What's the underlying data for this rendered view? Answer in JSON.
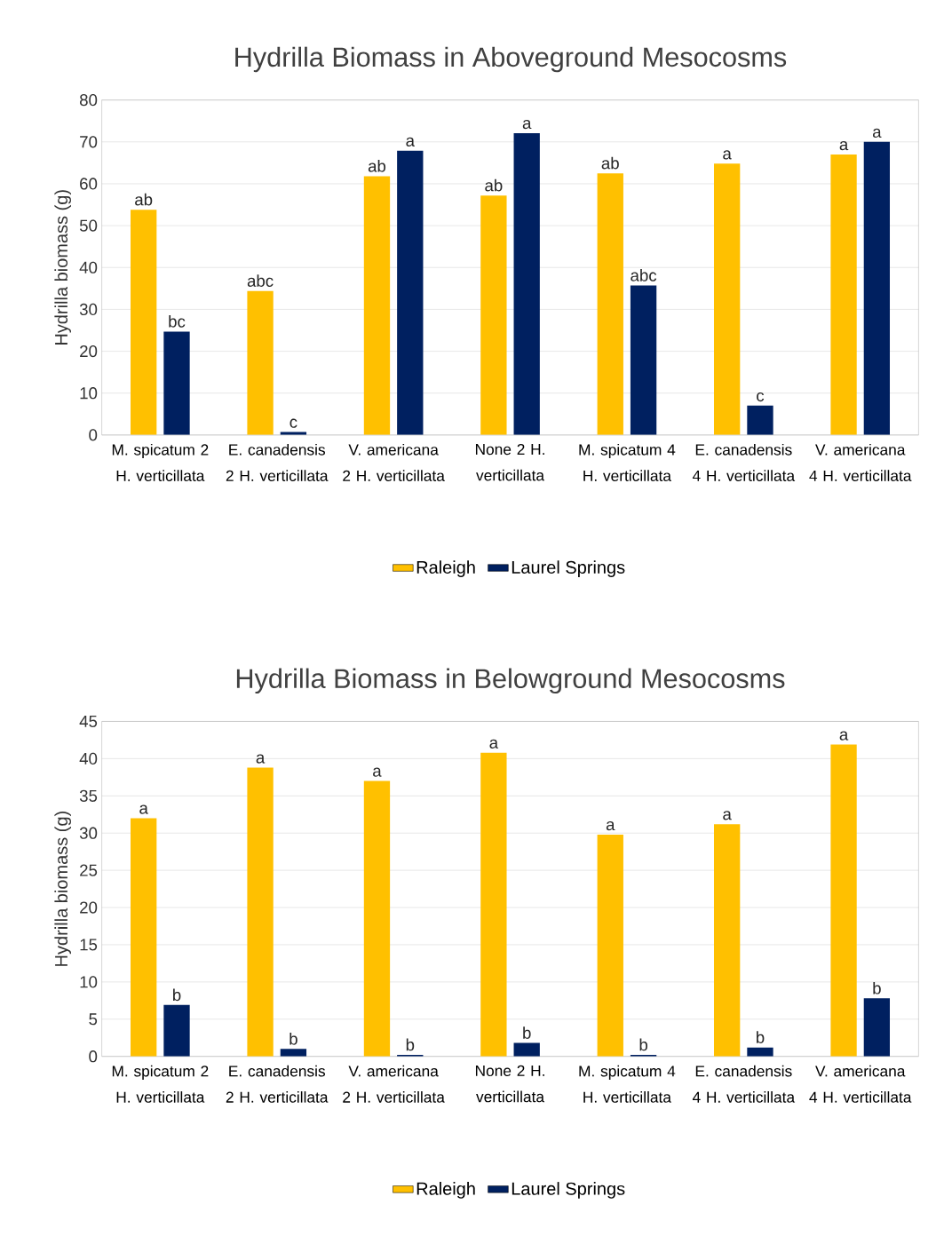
{
  "chart_data": [
    {
      "type": "bar",
      "title": "Hydrilla Biomass in Aboveground Mesocosms",
      "ylabel": "Hydrilla biomass (g)",
      "categories": [
        "M. spicatum 2 H. verticillata",
        "E. canadensis 2 H. verticillata",
        "V. americana 2 H. verticillata",
        "None 2 H. verticillata",
        "M. spicatum 4 H. verticillata",
        "E. canadensis 4 H. verticillata",
        "V. americana 4 H. verticillata"
      ],
      "series": [
        {
          "name": "Raleigh",
          "color": "#ffc000",
          "values": [
            53.8,
            34.4,
            61.8,
            57.2,
            62.5,
            64.8,
            67.0
          ],
          "value_labels": [
            "ab",
            "abc",
            "ab",
            "ab",
            "ab",
            "a",
            "a"
          ]
        },
        {
          "name": "Laurel Springs",
          "color": "#002060",
          "values": [
            24.7,
            0.7,
            67.9,
            72.1,
            35.7,
            7.0,
            70.0
          ],
          "value_labels": [
            "bc",
            "c",
            "a",
            "a",
            "abc",
            "c",
            "a"
          ]
        }
      ],
      "ylim": [
        0,
        80
      ],
      "yticks": [
        0,
        10,
        20,
        30,
        40,
        50,
        60,
        70,
        80
      ],
      "grid": "y",
      "legend": "bottom"
    },
    {
      "type": "bar",
      "title": "Hydrilla Biomass in Belowground Mesocosms",
      "ylabel": "Hydrilla biomass (g)",
      "categories": [
        "M. spicatum 2 H. verticillata",
        "E. canadensis 2 H. verticillata",
        "V. americana 2 H. verticillata",
        "None 2 H. verticillata",
        "M. spicatum 4 H. verticillata",
        "E. canadensis 4 H. verticillata",
        "V. americana 4 H. verticillata"
      ],
      "series": [
        {
          "name": "Raleigh",
          "color": "#ffc000",
          "values": [
            32.0,
            38.8,
            37.0,
            40.8,
            29.8,
            31.2,
            41.9
          ],
          "value_labels": [
            "a",
            "a",
            "a",
            "a",
            "a",
            "a",
            "a"
          ]
        },
        {
          "name": "Laurel Springs",
          "color": "#002060",
          "values": [
            6.9,
            1.0,
            0.2,
            1.8,
            0.2,
            1.2,
            7.8
          ],
          "value_labels": [
            "b",
            "b",
            "b",
            "b",
            "b",
            "b",
            "b"
          ]
        }
      ],
      "ylim": [
        0,
        45
      ],
      "yticks": [
        0,
        5,
        10,
        15,
        20,
        25,
        30,
        35,
        40,
        45
      ],
      "grid": "y",
      "legend": "bottom"
    }
  ]
}
